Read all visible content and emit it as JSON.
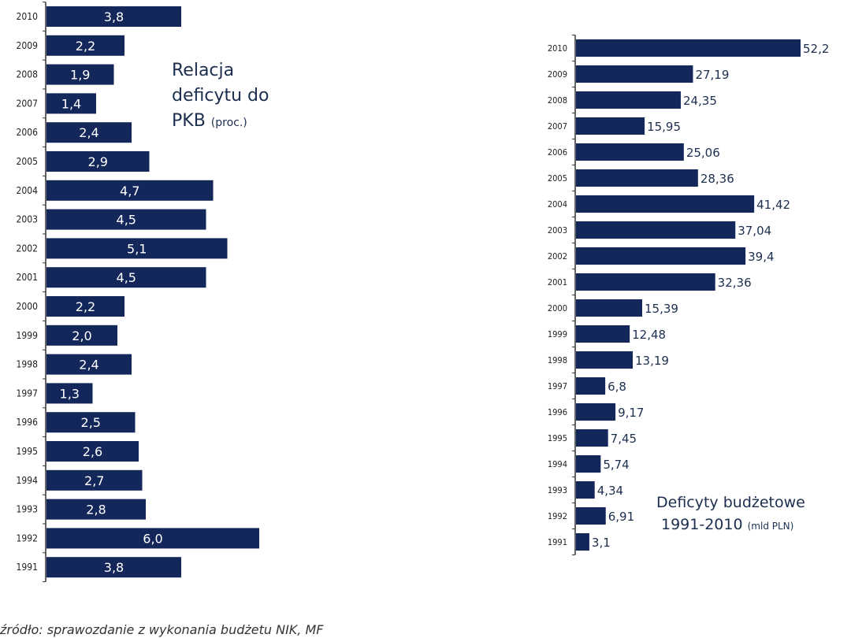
{
  "colors": {
    "bar": "#14275a",
    "axis": "#333333",
    "label_in": "#ffffff",
    "label_out": "#1c2e4e"
  },
  "chart_data": [
    {
      "type": "bar",
      "orientation": "horizontal",
      "title_main": "Relacja deficytu do PKB",
      "title_unit": "(proc.)",
      "title_line1": "Relacja",
      "title_line2": "deficytu do",
      "title_line3": "PKB",
      "categories": [
        "2010",
        "2009",
        "2008",
        "2007",
        "2006",
        "2005",
        "2004",
        "2003",
        "2002",
        "2001",
        "2000",
        "1999",
        "1998",
        "1997",
        "1996",
        "1995",
        "1994",
        "1993",
        "1992",
        "1991"
      ],
      "values": [
        3.8,
        2.2,
        1.9,
        1.4,
        2.4,
        2.9,
        4.7,
        4.5,
        5.1,
        4.5,
        2.2,
        2.0,
        2.4,
        1.3,
        2.5,
        2.6,
        2.7,
        2.8,
        6.0,
        3.8
      ],
      "labels": [
        "3,8",
        "2,2",
        "1,9",
        "1,4",
        "2,4",
        "2,9",
        "4,7",
        "4,5",
        "5,1",
        "4,5",
        "2,2",
        "2,0",
        "2,4",
        "1,3",
        "2,5",
        "2,6",
        "2,7",
        "2,8",
        "6,0",
        "3,8"
      ],
      "xlim": [
        0,
        6.0
      ]
    },
    {
      "type": "bar",
      "orientation": "horizontal",
      "title_line1": "Deficyty budżetowe",
      "title_line2": "1991-2010",
      "title_unit": "(mld PLN)",
      "categories": [
        "2010",
        "2009",
        "2008",
        "2007",
        "2006",
        "2005",
        "2004",
        "2003",
        "2002",
        "2001",
        "2000",
        "1999",
        "1998",
        "1997",
        "1996",
        "1995",
        "1994",
        "1993",
        "1992",
        "1991"
      ],
      "values": [
        52.2,
        27.19,
        24.35,
        15.95,
        25.06,
        28.36,
        41.42,
        37.04,
        39.4,
        32.36,
        15.39,
        12.48,
        13.19,
        6.8,
        9.17,
        7.45,
        5.74,
        4.34,
        6.91,
        3.1
      ],
      "labels": [
        "52,2",
        "27,19",
        "24,35",
        "15,95",
        "25,06",
        "28,36",
        "41,42",
        "37,04",
        "39,4",
        "32,36",
        "15,39",
        "12,48",
        "13,19",
        "6,8",
        "9,17",
        "7,45",
        "5,74",
        "4,34",
        "6,91",
        "3,1"
      ],
      "xlim": [
        0,
        52.2
      ]
    }
  ],
  "caption": "źródło: sprawozdanie z wykonania budżetu NIK, MF"
}
